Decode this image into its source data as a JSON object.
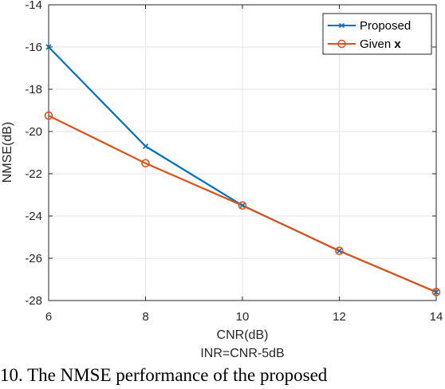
{
  "chart_data": {
    "type": "line",
    "title": "",
    "xlabel": "CNR(dB)",
    "xlabel2": "INR=CNR-5dB",
    "ylabel": "NMSE(dB)",
    "xlim": [
      6,
      14
    ],
    "ylim": [
      -28,
      -14
    ],
    "xticks": [
      6,
      8,
      10,
      12,
      14
    ],
    "yticks": [
      -28,
      -26,
      -24,
      -22,
      -20,
      -18,
      -16,
      -14
    ],
    "grid": true,
    "legend_position": "top-right",
    "series": [
      {
        "name": "Proposed",
        "color": "#0072BD",
        "marker": "x",
        "x": [
          6,
          8,
          10,
          12,
          14
        ],
        "y": [
          -16.0,
          -20.7,
          -23.5,
          -25.65,
          -27.6
        ]
      },
      {
        "name": "Given ",
        "name_bold": "x",
        "color": "#D95319",
        "marker": "circle",
        "x": [
          6,
          8,
          10,
          12,
          14
        ],
        "y": [
          -19.25,
          -21.5,
          -23.5,
          -25.65,
          -27.6
        ]
      }
    ]
  },
  "caption": {
    "text": "10.  The NMSE performance of the proposed"
  }
}
